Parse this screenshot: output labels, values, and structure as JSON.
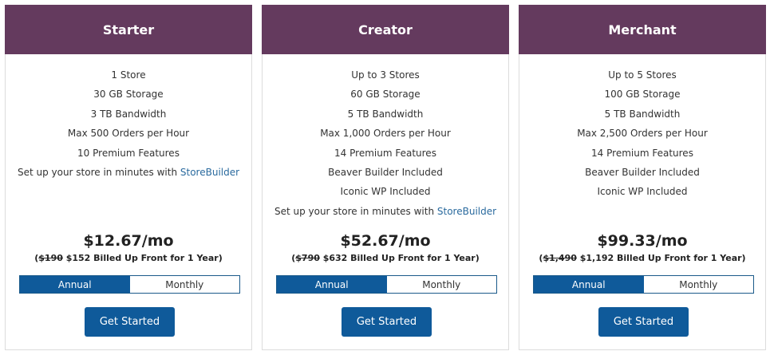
{
  "plans": [
    {
      "name": "Starter",
      "features": [
        "1 Store",
        "30 GB Storage",
        "3 TB Bandwidth",
        "Max 500 Orders per Hour",
        "10 Premium Features"
      ],
      "storebuilder_prefix": "Set up your store in minutes with ",
      "storebuilder_link": "StoreBuilder",
      "price": "$12.67/mo",
      "billing_open": "(",
      "original_price": "$190",
      "billing_rest": " $152 Billed Up Front for 1 Year)"
    },
    {
      "name": "Creator",
      "features": [
        "Up to 3 Stores",
        "60 GB Storage",
        "5 TB Bandwidth",
        "Max 1,000 Orders per Hour",
        "14 Premium Features",
        "Beaver Builder Included",
        "Iconic WP Included"
      ],
      "storebuilder_prefix": "Set up your store in minutes with ",
      "storebuilder_link": "StoreBuilder",
      "price": "$52.67/mo",
      "billing_open": "(",
      "original_price": "$790",
      "billing_rest": " $632 Billed Up Front for 1 Year)"
    },
    {
      "name": "Merchant",
      "features": [
        "Up to 5 Stores",
        "100 GB Storage",
        "5 TB Bandwidth",
        "Max 2,500 Orders per Hour",
        "14 Premium Features",
        "Beaver Builder Included",
        "Iconic WP Included"
      ],
      "price": "$99.33/mo",
      "billing_open": "(",
      "original_price": "$1,490",
      "billing_rest": " $1,192 Billed Up Front for 1 Year)"
    }
  ],
  "toggle": {
    "annual": "Annual",
    "monthly": "Monthly",
    "selected": "Annual"
  },
  "cta_label": "Get Started",
  "colors": {
    "header": "#643a5e",
    "accent": "#0f5a9a",
    "link": "#2a6a9e"
  }
}
